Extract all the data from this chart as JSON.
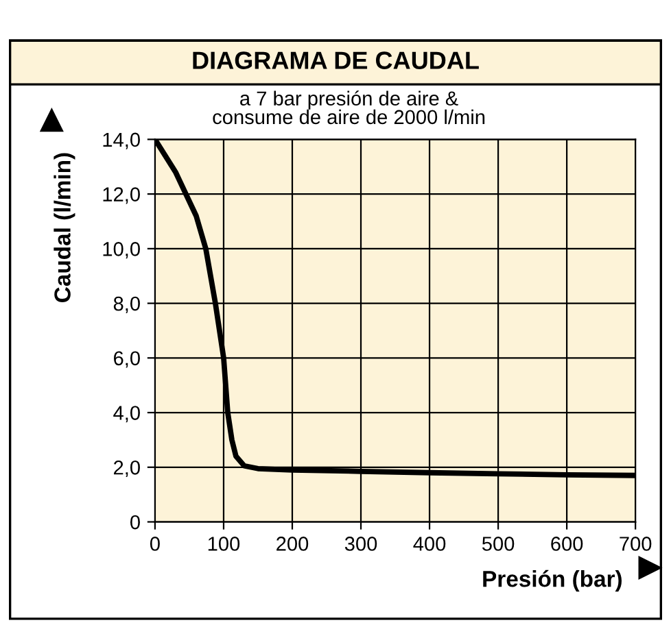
{
  "chart_data": {
    "type": "line",
    "title": "DIAGRAMA DE CAUDAL",
    "subtitle": "a 7 bar presión de aire &\nconsume de aire de 2000 l/min",
    "xlabel": "Presión (bar)",
    "ylabel": "Caudal (l/min)",
    "series": [
      {
        "color": "#000000",
        "x": [
          0,
          30,
          60,
          74,
          88,
          100,
          106,
          112,
          118,
          130,
          150,
          200,
          300,
          400,
          500,
          600,
          700
        ],
        "values": [
          14,
          12.8,
          11.2,
          10,
          8,
          6,
          4,
          3,
          2.4,
          2.05,
          1.95,
          1.9,
          1.85,
          1.8,
          1.76,
          1.72,
          1.7
        ]
      }
    ],
    "xlim": [
      0,
      700
    ],
    "xticks": [
      0,
      100,
      200,
      300,
      400,
      500,
      600,
      700
    ],
    "ylim": [
      0,
      14
    ],
    "yticks": [
      0,
      {
        "value": 2,
        "label": "2,0"
      },
      {
        "value": 4,
        "label": "4,0"
      },
      {
        "value": 6,
        "label": "6,0"
      },
      {
        "value": 8,
        "label": "8,0"
      },
      {
        "value": 10,
        "label": "10,0"
      },
      {
        "value": 12,
        "label": "12,0"
      },
      {
        "value": 14,
        "label": "14,0"
      }
    ],
    "grid": true,
    "line_style": "solid",
    "marker": "none"
  }
}
